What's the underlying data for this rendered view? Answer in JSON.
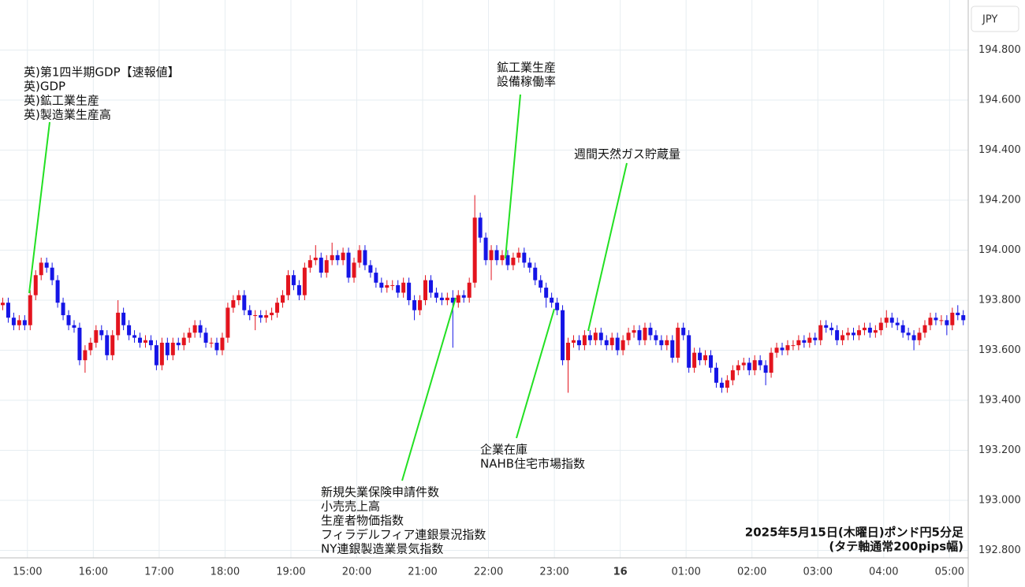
{
  "chart_data": {
    "type": "candlestick",
    "currency": "JPY",
    "footer": [
      "2025年5月15日(木曜日)ポンド円5分足",
      "(タテ軸通常200pips幅)"
    ],
    "annotations": [
      {
        "lines": [
          "英)第1四半期GDP【速報値】",
          "英)GDP",
          "英)鉱工業生産",
          "英)製造業生産高"
        ]
      },
      {
        "lines": [
          "鉱工業生産",
          "設備稼働率"
        ]
      },
      {
        "lines": [
          "週間天然ガス貯蔵量"
        ]
      },
      {
        "lines": [
          "企業在庫",
          "NAHB住宅市場指数"
        ]
      },
      {
        "lines": [
          "新規失業保険申請件数",
          "小売売上高",
          "生産者物価指数",
          "フィラデルフィア連銀景況指数",
          "NY連銀製造業景気指数"
        ]
      }
    ],
    "up_color": "#e3141e",
    "down_color": "#1515e6",
    "grid": true,
    "xlim": [
      0,
      176.4
    ],
    "ylim": [
      192.77,
      195.0
    ],
    "xticks": [
      {
        "value": 5,
        "label": "15:00"
      },
      {
        "value": 17,
        "label": "16:00"
      },
      {
        "value": 29,
        "label": "17:00"
      },
      {
        "value": 41,
        "label": "18:00"
      },
      {
        "value": 53,
        "label": "19:00"
      },
      {
        "value": 65,
        "label": "20:00"
      },
      {
        "value": 77,
        "label": "21:00"
      },
      {
        "value": 89,
        "label": "22:00"
      },
      {
        "value": 101,
        "label": "23:00"
      },
      {
        "value": 113,
        "label": "16"
      },
      {
        "value": 125,
        "label": "01:00"
      },
      {
        "value": 137,
        "label": "02:00"
      },
      {
        "value": 149,
        "label": "03:00"
      },
      {
        "value": 161,
        "label": "04:00"
      },
      {
        "value": 173,
        "label": "05:00"
      }
    ],
    "yticks": [
      {
        "value": 192.8,
        "label": "192.800"
      },
      {
        "value": 193.0,
        "label": "193.000"
      },
      {
        "value": 193.2,
        "label": "193.200"
      },
      {
        "value": 193.4,
        "label": "193.400"
      },
      {
        "value": 193.6,
        "label": "193.600"
      },
      {
        "value": 193.8,
        "label": "193.800"
      },
      {
        "value": 194.0,
        "label": "194.000"
      },
      {
        "value": 194.2,
        "label": "194.200"
      },
      {
        "value": 194.4,
        "label": "194.400"
      },
      {
        "value": 194.6,
        "label": "194.600"
      },
      {
        "value": 194.8,
        "label": "194.800"
      }
    ],
    "open": [
      193.78,
      193.79,
      193.73,
      193.7,
      193.72,
      193.7,
      193.82,
      193.9,
      193.95,
      193.93,
      193.88,
      193.79,
      193.74,
      193.7,
      193.69,
      193.56,
      193.6,
      193.63,
      193.68,
      193.66,
      193.58,
      193.66,
      193.75,
      193.7,
      193.66,
      193.65,
      193.63,
      193.64,
      193.62,
      193.54,
      193.63,
      193.58,
      193.63,
      193.62,
      193.65,
      193.67,
      193.7,
      193.67,
      193.63,
      193.63,
      193.6,
      193.65,
      193.77,
      193.8,
      193.82,
      193.76,
      193.74,
      193.74,
      193.73,
      193.74,
      193.75,
      193.79,
      193.82,
      193.9,
      193.86,
      193.82,
      193.93,
      193.96,
      193.97,
      193.91,
      193.96,
      193.98,
      193.96,
      193.99,
      193.89,
      193.95,
      194.0,
      193.94,
      193.91,
      193.87,
      193.85,
      193.86,
      193.86,
      193.83,
      193.87,
      193.8,
      193.76,
      193.8,
      193.88,
      193.83,
      193.81,
      193.8,
      193.81,
      193.79,
      193.82,
      193.81,
      193.87,
      194.13,
      194.05,
      193.96,
      194.0,
      193.96,
      193.98,
      193.94,
      193.97,
      193.99,
      193.95,
      193.93,
      193.88,
      193.85,
      193.81,
      193.79,
      193.76,
      193.56,
      193.63,
      193.64,
      193.62,
      193.66,
      193.64,
      193.67,
      193.64,
      193.62,
      193.65,
      193.6,
      193.64,
      193.67,
      193.68,
      193.64,
      193.69,
      193.66,
      193.64,
      193.62,
      193.64,
      193.57,
      193.69,
      193.66,
      193.53,
      193.59,
      193.56,
      193.58,
      193.53,
      193.47,
      193.45,
      193.48,
      193.52,
      193.54,
      193.55,
      193.52,
      193.56,
      193.54,
      193.51,
      193.59,
      193.61,
      193.6,
      193.62,
      193.62,
      193.64,
      193.63,
      193.65,
      193.64,
      193.7,
      193.69,
      193.68,
      193.64,
      193.66,
      193.67,
      193.66,
      193.68,
      193.69,
      193.67,
      193.68,
      193.71,
      193.73,
      193.71,
      193.7,
      193.67,
      193.66,
      193.64,
      193.67,
      193.7,
      193.73,
      193.72,
      193.72,
      193.7,
      193.75,
      193.74
    ],
    "high": [
      193.81,
      193.81,
      193.75,
      193.74,
      193.74,
      193.84,
      193.92,
      193.97,
      193.97,
      193.95,
      193.9,
      193.81,
      193.76,
      193.72,
      193.71,
      193.62,
      193.65,
      193.7,
      193.7,
      193.68,
      193.68,
      193.8,
      193.77,
      193.72,
      193.68,
      193.67,
      193.66,
      193.66,
      193.64,
      193.65,
      193.65,
      193.65,
      193.65,
      193.67,
      193.69,
      193.72,
      193.72,
      193.69,
      193.65,
      193.65,
      193.67,
      193.79,
      193.82,
      193.84,
      193.84,
      193.78,
      193.76,
      193.76,
      193.76,
      193.77,
      193.81,
      193.84,
      193.92,
      193.92,
      193.88,
      193.95,
      193.98,
      194.02,
      193.99,
      193.98,
      194.03,
      194.0,
      194.01,
      194.01,
      193.97,
      194.02,
      194.02,
      193.96,
      193.93,
      193.89,
      193.88,
      193.88,
      193.88,
      193.89,
      193.89,
      193.82,
      193.82,
      193.9,
      193.9,
      193.85,
      193.83,
      193.83,
      193.84,
      193.84,
      193.84,
      193.89,
      194.22,
      194.15,
      194.07,
      194.02,
      194.02,
      194.0,
      194.0,
      193.99,
      194.01,
      194.01,
      193.97,
      193.95,
      193.9,
      193.87,
      193.83,
      193.81,
      193.78,
      193.65,
      193.66,
      193.66,
      193.68,
      193.68,
      193.69,
      193.69,
      193.66,
      193.67,
      193.67,
      193.66,
      193.69,
      193.7,
      193.7,
      193.71,
      193.71,
      193.68,
      193.66,
      193.66,
      193.66,
      193.71,
      193.71,
      193.68,
      193.61,
      193.61,
      193.6,
      193.6,
      193.55,
      193.49,
      193.5,
      193.54,
      193.56,
      193.57,
      193.57,
      193.58,
      193.58,
      193.56,
      193.61,
      193.63,
      193.63,
      193.64,
      193.64,
      193.66,
      193.66,
      193.67,
      193.67,
      193.72,
      193.72,
      193.71,
      193.7,
      193.68,
      193.69,
      193.69,
      193.7,
      193.71,
      193.71,
      193.7,
      193.73,
      193.76,
      193.75,
      193.73,
      193.72,
      193.69,
      193.68,
      193.69,
      193.72,
      193.75,
      193.75,
      193.74,
      193.74,
      193.77,
      193.78,
      193.76
    ],
    "low": [
      193.76,
      193.71,
      193.68,
      193.68,
      193.68,
      193.68,
      193.8,
      193.88,
      193.91,
      193.86,
      193.77,
      193.72,
      193.68,
      193.67,
      193.54,
      193.51,
      193.58,
      193.61,
      193.64,
      193.56,
      193.56,
      193.64,
      193.68,
      193.64,
      193.63,
      193.61,
      193.61,
      193.6,
      193.52,
      193.52,
      193.56,
      193.56,
      193.6,
      193.6,
      193.63,
      193.65,
      193.65,
      193.61,
      193.61,
      193.58,
      193.58,
      193.63,
      193.75,
      193.78,
      193.74,
      193.72,
      193.68,
      193.71,
      193.71,
      193.72,
      193.73,
      193.77,
      193.8,
      193.84,
      193.8,
      193.8,
      193.91,
      193.94,
      193.89,
      193.89,
      193.94,
      193.94,
      193.94,
      193.87,
      193.87,
      193.93,
      193.92,
      193.89,
      193.85,
      193.83,
      193.83,
      193.84,
      193.81,
      193.81,
      193.78,
      193.72,
      193.74,
      193.78,
      193.81,
      193.79,
      193.78,
      193.78,
      193.61,
      193.77,
      193.79,
      193.79,
      193.85,
      194.03,
      193.94,
      193.88,
      193.94,
      193.94,
      193.92,
      193.92,
      193.95,
      193.93,
      193.91,
      193.86,
      193.83,
      193.77,
      193.77,
      193.74,
      193.54,
      193.43,
      193.61,
      193.6,
      193.6,
      193.62,
      193.62,
      193.62,
      193.6,
      193.6,
      193.58,
      193.58,
      193.62,
      193.65,
      193.62,
      193.62,
      193.64,
      193.62,
      193.6,
      193.6,
      193.55,
      193.55,
      193.64,
      193.51,
      193.51,
      193.54,
      193.54,
      193.51,
      193.45,
      193.43,
      193.43,
      193.46,
      193.5,
      193.52,
      193.5,
      193.5,
      193.52,
      193.46,
      193.49,
      193.57,
      193.58,
      193.58,
      193.6,
      193.6,
      193.61,
      193.61,
      193.62,
      193.62,
      193.67,
      193.66,
      193.62,
      193.62,
      193.64,
      193.64,
      193.64,
      193.66,
      193.65,
      193.65,
      193.66,
      193.69,
      193.69,
      193.68,
      193.65,
      193.64,
      193.6,
      193.62,
      193.65,
      193.68,
      193.7,
      193.7,
      193.66,
      193.68,
      193.72,
      193.7
    ],
    "close": [
      193.79,
      193.73,
      193.7,
      193.72,
      193.7,
      193.82,
      193.9,
      193.95,
      193.93,
      193.88,
      193.79,
      193.74,
      193.7,
      193.69,
      193.56,
      193.6,
      193.63,
      193.68,
      193.66,
      193.58,
      193.66,
      193.75,
      193.7,
      193.66,
      193.65,
      193.63,
      193.64,
      193.62,
      193.54,
      193.63,
      193.58,
      193.63,
      193.62,
      193.65,
      193.67,
      193.7,
      193.67,
      193.63,
      193.63,
      193.6,
      193.65,
      193.77,
      193.8,
      193.82,
      193.76,
      193.74,
      193.74,
      193.73,
      193.74,
      193.75,
      193.79,
      193.82,
      193.9,
      193.86,
      193.82,
      193.93,
      193.96,
      193.97,
      193.91,
      193.96,
      193.98,
      193.96,
      193.99,
      193.89,
      193.95,
      194.0,
      193.94,
      193.91,
      193.87,
      193.85,
      193.86,
      193.86,
      193.83,
      193.87,
      193.8,
      193.76,
      193.8,
      193.88,
      193.83,
      193.81,
      193.8,
      193.81,
      193.79,
      193.82,
      193.81,
      193.87,
      194.13,
      194.05,
      193.96,
      194.0,
      193.96,
      193.98,
      193.94,
      193.97,
      193.99,
      193.95,
      193.93,
      193.88,
      193.85,
      193.81,
      193.79,
      193.76,
      193.56,
      193.63,
      193.64,
      193.62,
      193.66,
      193.64,
      193.67,
      193.64,
      193.62,
      193.65,
      193.6,
      193.64,
      193.67,
      193.68,
      193.64,
      193.69,
      193.66,
      193.64,
      193.62,
      193.64,
      193.57,
      193.69,
      193.66,
      193.53,
      193.59,
      193.56,
      193.58,
      193.53,
      193.47,
      193.45,
      193.48,
      193.52,
      193.54,
      193.55,
      193.52,
      193.56,
      193.54,
      193.51,
      193.59,
      193.61,
      193.6,
      193.62,
      193.62,
      193.64,
      193.63,
      193.65,
      193.64,
      193.7,
      193.69,
      193.68,
      193.64,
      193.66,
      193.67,
      193.66,
      193.68,
      193.69,
      193.67,
      193.68,
      193.71,
      193.73,
      193.71,
      193.7,
      193.67,
      193.66,
      193.64,
      193.67,
      193.7,
      193.73,
      193.72,
      193.72,
      193.7,
      193.75,
      193.74,
      193.72
    ]
  }
}
